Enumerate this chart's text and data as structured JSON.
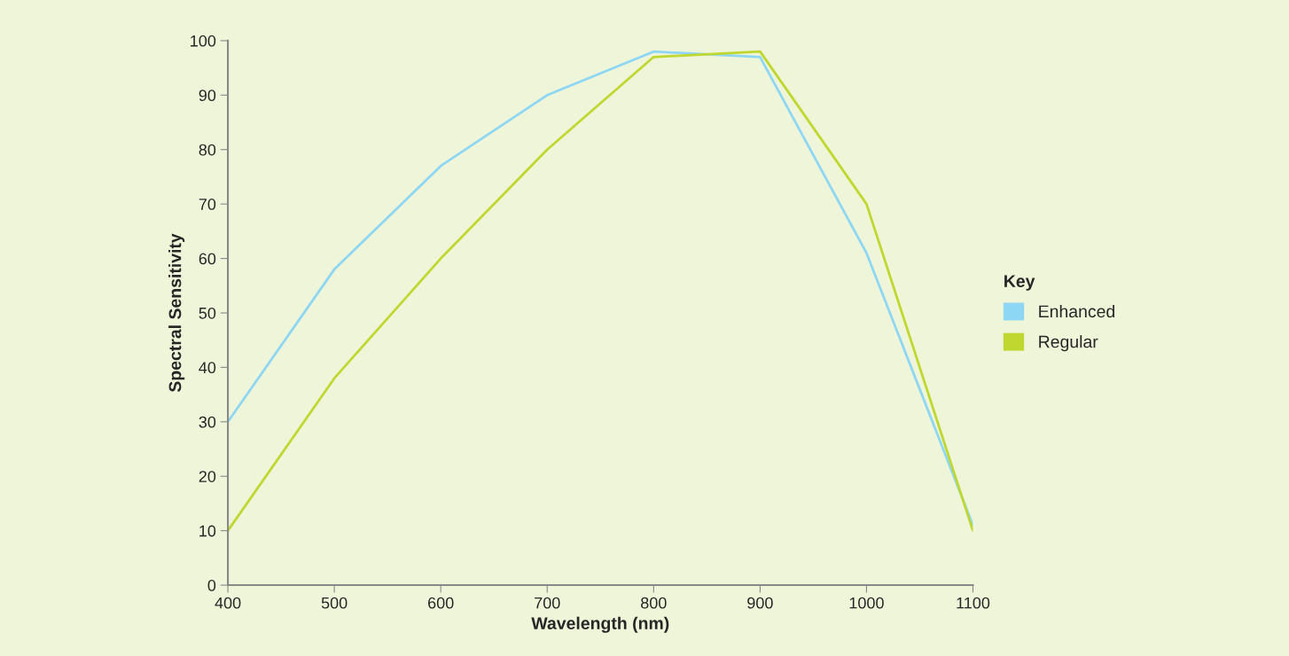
{
  "chart_data": {
    "type": "line",
    "xlabel": "Wavelength (nm)",
    "ylabel": "Spectral Sensitivity",
    "legend_title": "Key",
    "x": [
      400,
      500,
      600,
      700,
      800,
      900,
      1000,
      1100
    ],
    "series": [
      {
        "name": "Enhanced",
        "color": "#8dd7f5",
        "values": [
          30,
          58,
          77,
          90,
          98,
          97,
          61,
          11
        ]
      },
      {
        "name": "Regular",
        "color": "#c0d72f",
        "values": [
          10,
          38,
          60,
          80,
          97,
          98,
          70,
          10
        ]
      }
    ],
    "xlim": [
      400,
      1100
    ],
    "xticks": [
      400,
      500,
      600,
      700,
      800,
      900,
      1000,
      1100
    ],
    "ylim": [
      0,
      100
    ],
    "yticks": [
      0,
      10,
      20,
      30,
      40,
      50,
      60,
      70,
      80,
      90,
      100
    ],
    "grid": false,
    "legend": "right",
    "marker": "none",
    "line_style": "solid"
  }
}
